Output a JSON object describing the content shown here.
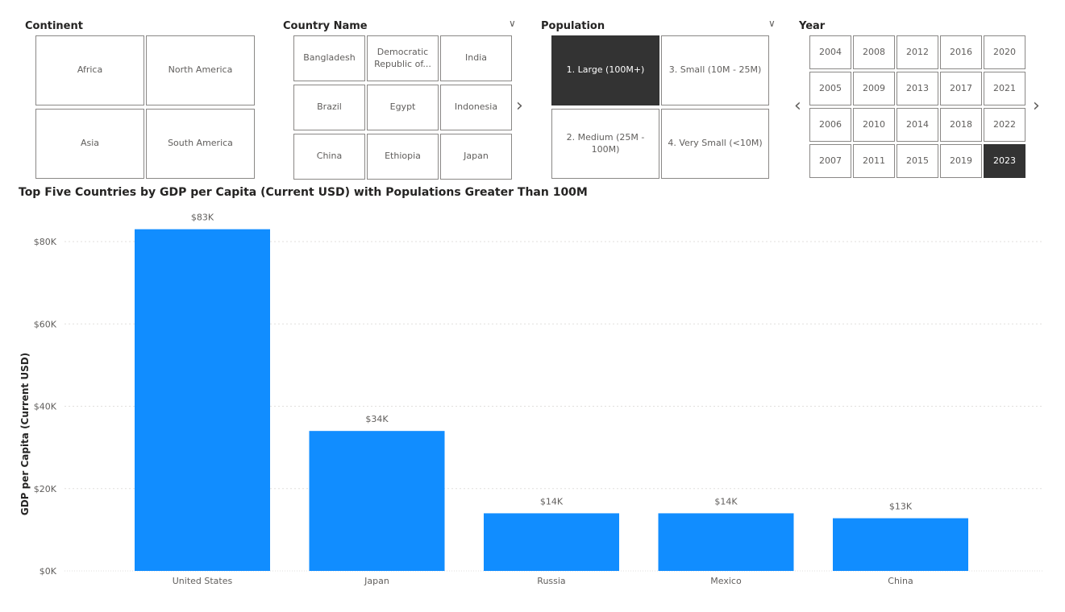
{
  "slicers": {
    "continent": {
      "title": "Continent",
      "items": [
        {
          "label": "Africa",
          "selected": false
        },
        {
          "label": "North America",
          "selected": false
        },
        {
          "label": "Asia",
          "selected": false
        },
        {
          "label": "South America",
          "selected": false
        }
      ]
    },
    "country": {
      "title": "Country Name",
      "items": [
        {
          "label": "Bangladesh",
          "selected": false
        },
        {
          "label": "Democratic Republic of...",
          "selected": false
        },
        {
          "label": "India",
          "selected": false
        },
        {
          "label": "Brazil",
          "selected": false
        },
        {
          "label": "Egypt",
          "selected": false
        },
        {
          "label": "Indonesia",
          "selected": false
        },
        {
          "label": "China",
          "selected": false
        },
        {
          "label": "Ethiopia",
          "selected": false
        },
        {
          "label": "Japan",
          "selected": false
        }
      ]
    },
    "population": {
      "title": "Population",
      "items": [
        {
          "label": "1. Large (100M+)",
          "selected": true
        },
        {
          "label": "3. Small (10M - 25M)",
          "selected": false
        },
        {
          "label": "2. Medium (25M - 100M)",
          "selected": false
        },
        {
          "label": "4. Very Small (<10M)",
          "selected": false
        }
      ]
    },
    "year": {
      "title": "Year",
      "items": [
        {
          "label": "2004",
          "selected": false
        },
        {
          "label": "2008",
          "selected": false
        },
        {
          "label": "2012",
          "selected": false
        },
        {
          "label": "2016",
          "selected": false
        },
        {
          "label": "2020",
          "selected": false
        },
        {
          "label": "2005",
          "selected": false
        },
        {
          "label": "2009",
          "selected": false
        },
        {
          "label": "2013",
          "selected": false
        },
        {
          "label": "2017",
          "selected": false
        },
        {
          "label": "2021",
          "selected": false
        },
        {
          "label": "2006",
          "selected": false
        },
        {
          "label": "2010",
          "selected": false
        },
        {
          "label": "2014",
          "selected": false
        },
        {
          "label": "2018",
          "selected": false
        },
        {
          "label": "2022",
          "selected": false
        },
        {
          "label": "2007",
          "selected": false
        },
        {
          "label": "2011",
          "selected": false
        },
        {
          "label": "2015",
          "selected": false
        },
        {
          "label": "2019",
          "selected": false
        },
        {
          "label": "2023",
          "selected": true
        }
      ]
    }
  },
  "colors": {
    "bar": "#118DFF",
    "selected_tile": "#333333",
    "gridline": "#e1dfdd"
  },
  "chart_data": {
    "type": "bar",
    "title": "Top Five Countries by GDP per Capita (Current USD) with Populations Greater Than 100M",
    "xlabel": "",
    "ylabel": "GDP per Capita (Current USD)",
    "categories": [
      "United States",
      "Japan",
      "Russia",
      "Mexico",
      "China"
    ],
    "values": [
      83000,
      34000,
      14000,
      14000,
      12800
    ],
    "data_labels": [
      "$83K",
      "$34K",
      "$14K",
      "$14K",
      "$13K"
    ],
    "ylim": [
      0,
      85000
    ],
    "yticks": [
      0,
      20000,
      40000,
      60000,
      80000
    ],
    "ytick_labels": [
      "$0K",
      "$20K",
      "$40K",
      "$60K",
      "$80K"
    ],
    "grid": true
  }
}
